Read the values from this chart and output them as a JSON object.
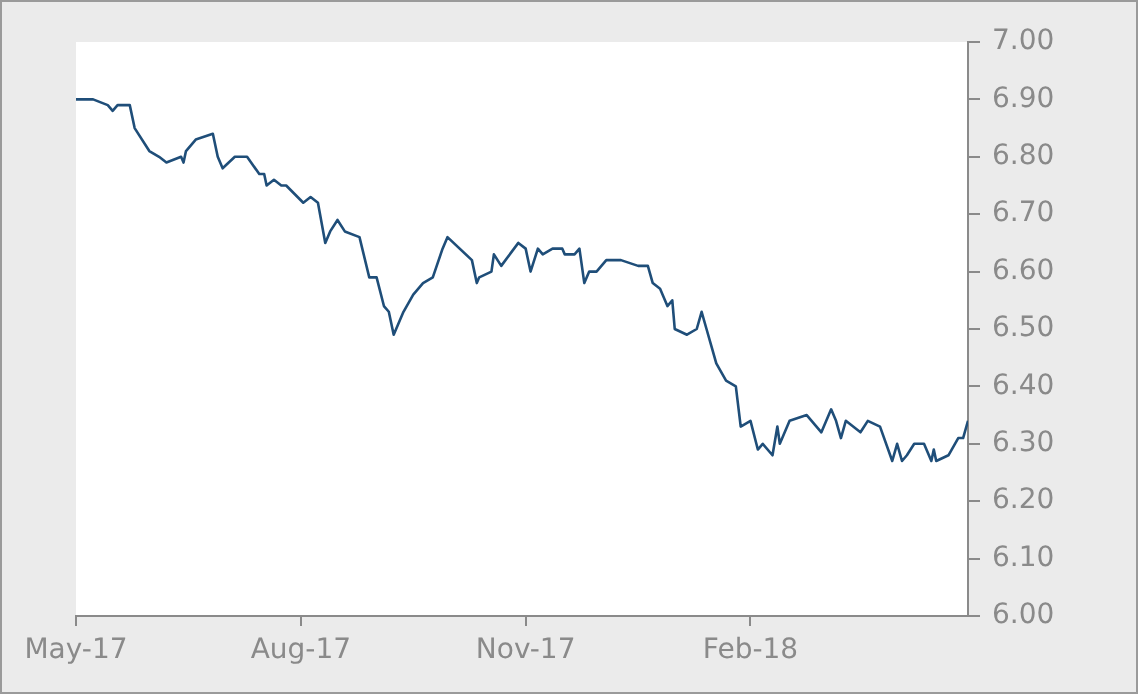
{
  "chart_data": {
    "type": "line",
    "color": "#1f4e79",
    "x": [
      "2017-05-01",
      "2017-05-08",
      "2017-05-14",
      "2017-05-16",
      "2017-05-18",
      "2017-05-23",
      "2017-05-25",
      "2017-05-31",
      "2017-06-04",
      "2017-06-07",
      "2017-06-13",
      "2017-06-14",
      "2017-06-15",
      "2017-06-19",
      "2017-06-26",
      "2017-06-28",
      "2017-06-30",
      "2017-07-05",
      "2017-07-10",
      "2017-07-15",
      "2017-07-17",
      "2017-07-18",
      "2017-07-21",
      "2017-07-24",
      "2017-07-26",
      "2017-08-02",
      "2017-08-05",
      "2017-08-08",
      "2017-08-11",
      "2017-08-13",
      "2017-08-16",
      "2017-08-19",
      "2017-08-25",
      "2017-08-29",
      "2017-09-01",
      "2017-09-04",
      "2017-09-06",
      "2017-09-08",
      "2017-09-12",
      "2017-09-16",
      "2017-09-20",
      "2017-09-24",
      "2017-09-28",
      "2017-09-30",
      "2017-10-10",
      "2017-10-12",
      "2017-10-13",
      "2017-10-18",
      "2017-10-19",
      "2017-10-22",
      "2017-10-29",
      "2017-11-01",
      "2017-11-03",
      "2017-11-06",
      "2017-11-08",
      "2017-11-12",
      "2017-11-16",
      "2017-11-17",
      "2017-11-21",
      "2017-11-23",
      "2017-11-25",
      "2017-11-27",
      "2017-11-30",
      "2017-12-04",
      "2017-12-10",
      "2017-12-17",
      "2017-12-21",
      "2017-12-23",
      "2017-12-26",
      "2017-12-29",
      "2017-12-31",
      "2018-01-01",
      "2018-01-06",
      "2018-01-10",
      "2018-01-12",
      "2018-01-14",
      "2018-01-16",
      "2018-01-18",
      "2018-01-22",
      "2018-01-26",
      "2018-01-28",
      "2018-02-01",
      "2018-02-04",
      "2018-02-06",
      "2018-02-10",
      "2018-02-12",
      "2018-02-13",
      "2018-02-17",
      "2018-02-24",
      "2018-03-02",
      "2018-03-06",
      "2018-03-08",
      "2018-03-10",
      "2018-03-12",
      "2018-03-18",
      "2018-03-21",
      "2018-03-26",
      "2018-03-31",
      "2018-04-02",
      "2018-04-04",
      "2018-04-06",
      "2018-04-09",
      "2018-04-13",
      "2018-04-16",
      "2018-04-17",
      "2018-04-18",
      "2018-04-23",
      "2018-04-27",
      "2018-04-29",
      "2018-05-01"
    ],
    "values": [
      6.9,
      6.9,
      6.89,
      6.88,
      6.89,
      6.89,
      6.85,
      6.81,
      6.8,
      6.79,
      6.8,
      6.79,
      6.81,
      6.83,
      6.84,
      6.8,
      6.78,
      6.8,
      6.8,
      6.77,
      6.77,
      6.75,
      6.76,
      6.75,
      6.75,
      6.72,
      6.73,
      6.72,
      6.65,
      6.67,
      6.69,
      6.67,
      6.66,
      6.59,
      6.59,
      6.54,
      6.53,
      6.49,
      6.53,
      6.56,
      6.58,
      6.59,
      6.64,
      6.66,
      6.62,
      6.58,
      6.59,
      6.6,
      6.63,
      6.61,
      6.65,
      6.64,
      6.6,
      6.64,
      6.63,
      6.64,
      6.64,
      6.63,
      6.63,
      6.64,
      6.58,
      6.6,
      6.6,
      6.62,
      6.62,
      6.61,
      6.61,
      6.58,
      6.57,
      6.54,
      6.55,
      6.5,
      6.49,
      6.5,
      6.53,
      6.5,
      6.47,
      6.44,
      6.41,
      6.4,
      6.33,
      6.34,
      6.29,
      6.3,
      6.28,
      6.33,
      6.3,
      6.34,
      6.35,
      6.32,
      6.36,
      6.34,
      6.31,
      6.34,
      6.32,
      6.34,
      6.33,
      6.27,
      6.3,
      6.27,
      6.28,
      6.3,
      6.3,
      6.27,
      6.29,
      6.27,
      6.28,
      6.31,
      6.31,
      6.34
    ],
    "xlim": [
      "2017-05-01",
      "2018-05-01"
    ],
    "xticks": [
      {
        "value": "2017-05-01",
        "label": "May-17"
      },
      {
        "value": "2017-08-01",
        "label": "Aug-17"
      },
      {
        "value": "2017-11-01",
        "label": "Nov-17"
      },
      {
        "value": "2018-02-01",
        "label": "Feb-18"
      }
    ],
    "ylim": [
      6.0,
      7.0
    ],
    "yticks": [
      {
        "value": 6.0,
        "label": "6.00"
      },
      {
        "value": 6.1,
        "label": "6.10"
      },
      {
        "value": 6.2,
        "label": "6.20"
      },
      {
        "value": 6.3,
        "label": "6.30"
      },
      {
        "value": 6.4,
        "label": "6.40"
      },
      {
        "value": 6.5,
        "label": "6.50"
      },
      {
        "value": 6.6,
        "label": "6.60"
      },
      {
        "value": 6.7,
        "label": "6.70"
      },
      {
        "value": 6.8,
        "label": "6.80"
      },
      {
        "value": 6.9,
        "label": "6.90"
      },
      {
        "value": 7.0,
        "label": "7.00"
      }
    ],
    "grid": false,
    "legend": false,
    "marker": "none",
    "line_style": "solid"
  }
}
